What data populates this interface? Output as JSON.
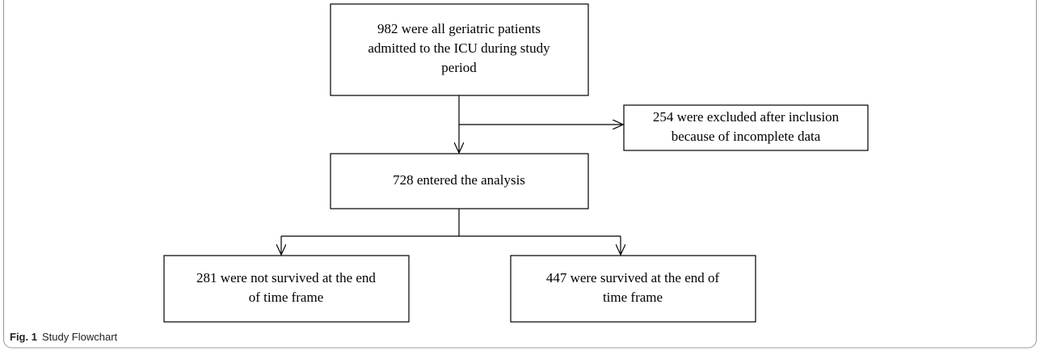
{
  "nodes": [
    {
      "lines": [
        "982 were all geriatric patients",
        "admitted to the ICU during study",
        "period"
      ]
    },
    {
      "lines": [
        "254 were excluded after inclusion",
        "because of incomplete data"
      ]
    },
    {
      "lines": [
        "728 entered the analysis"
      ]
    },
    {
      "lines": [
        "281 were not survived at the end",
        "of time frame"
      ]
    },
    {
      "lines": [
        "447 were survived at the end of",
        "time frame"
      ]
    }
  ],
  "caption": {
    "label": "Fig. 1",
    "text": "Study Flowchart"
  }
}
